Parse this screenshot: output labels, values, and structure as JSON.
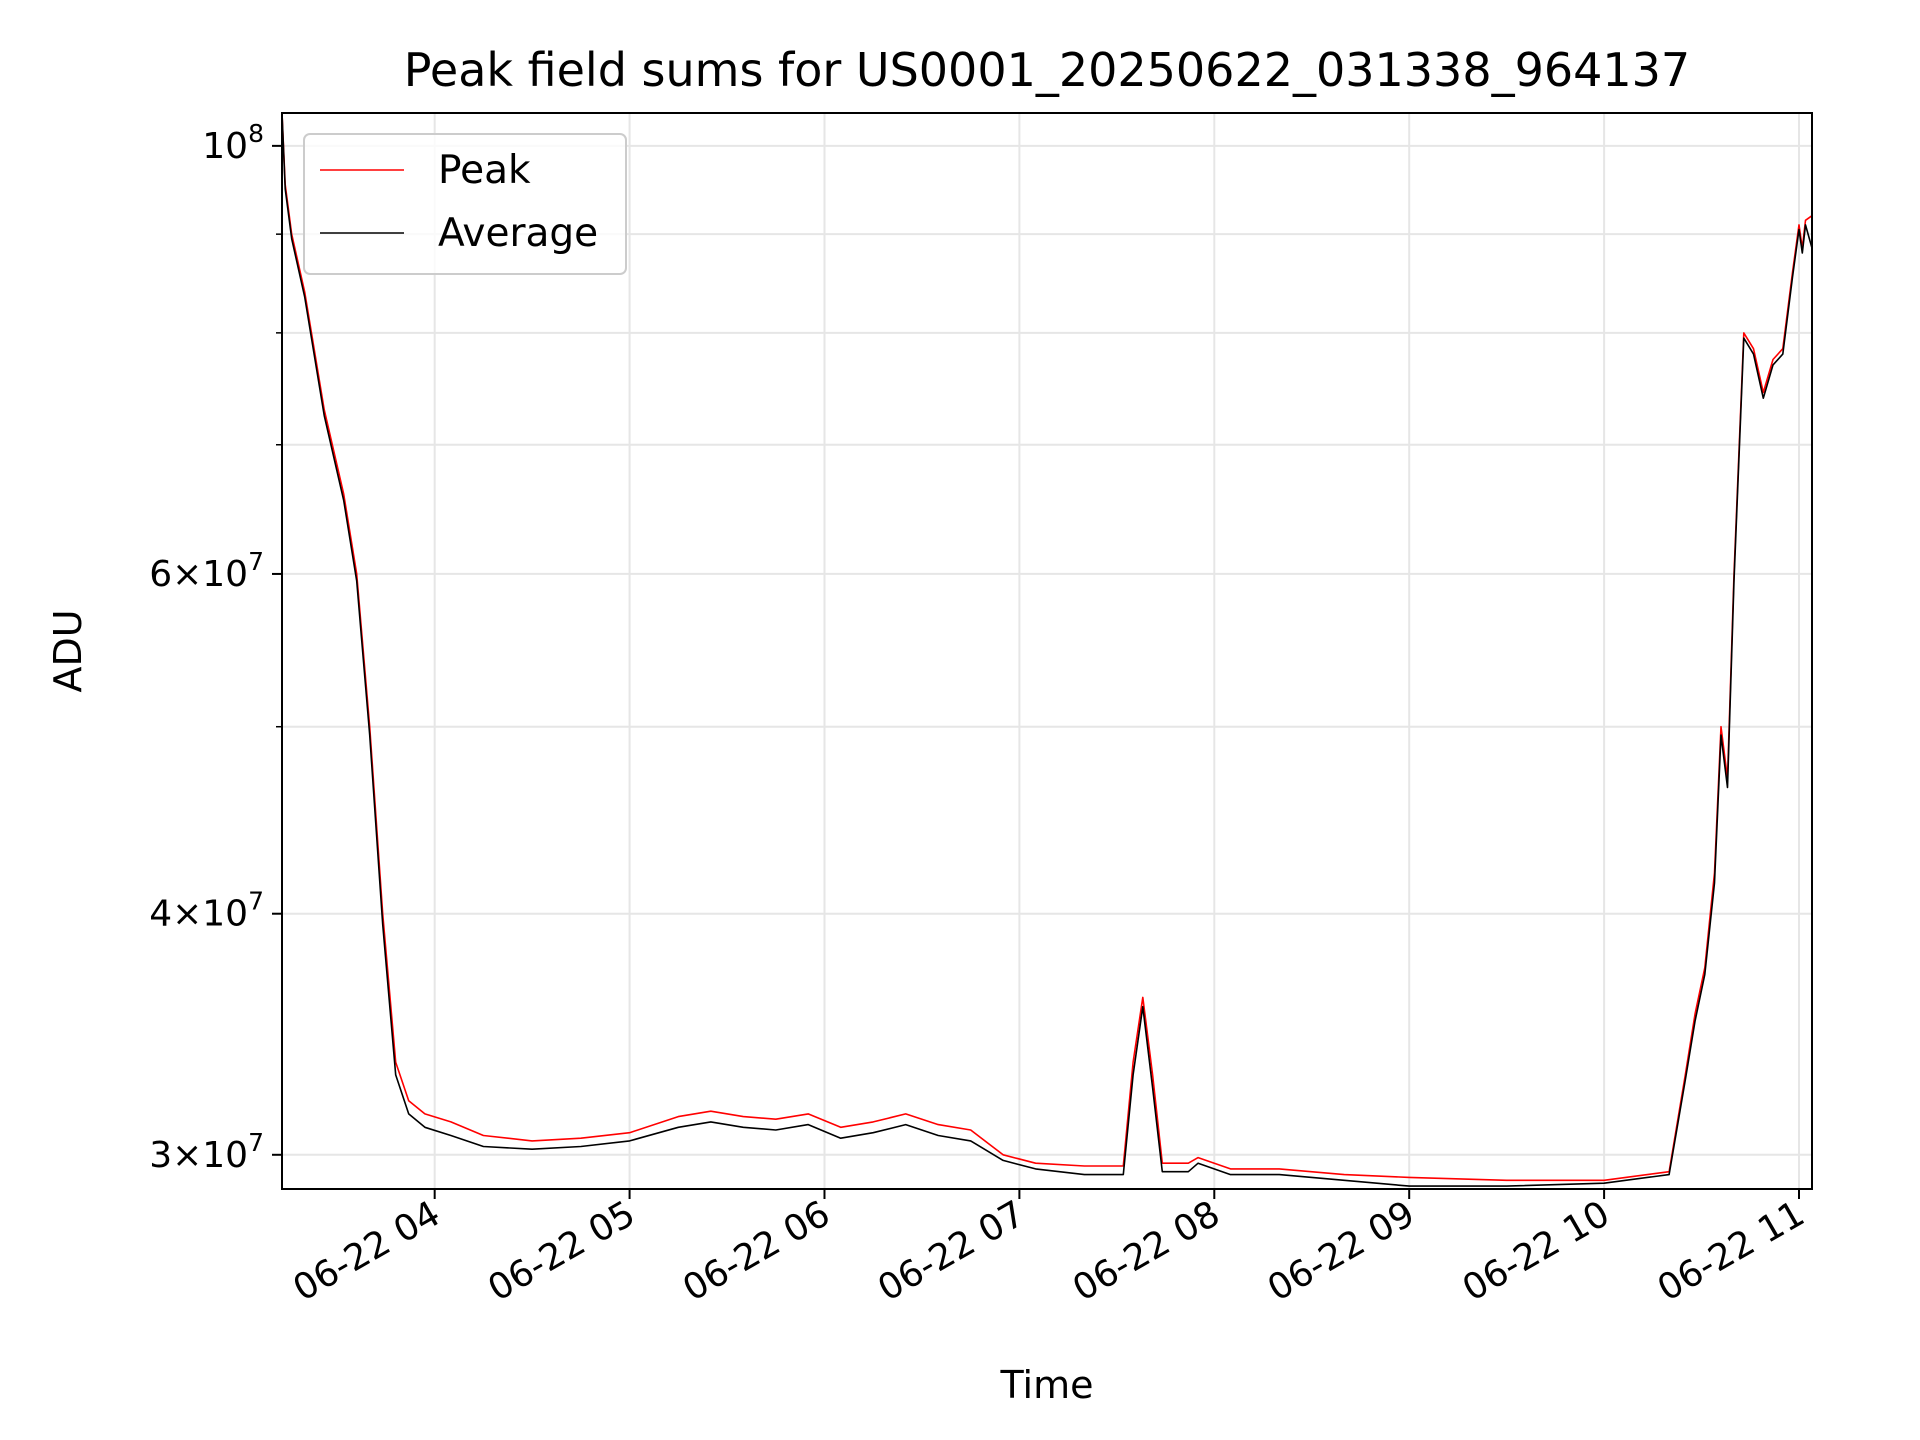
{
  "chart_data": {
    "type": "line",
    "title": "Peak field sums for US0001_20250622_031338_964137",
    "xlabel": "Time",
    "ylabel": "ADU",
    "y_scale": "log",
    "ylim": [
      28800000,
      104000000
    ],
    "xlim": [
      "2025-06-22 03:13",
      "2025-06-22 11:04"
    ],
    "grid": true,
    "legend_position": "top-left",
    "x_ticks": [
      {
        "label": "06-22 04",
        "value": "2025-06-22 04:00"
      },
      {
        "label": "06-22 05",
        "value": "2025-06-22 05:00"
      },
      {
        "label": "06-22 06",
        "value": "2025-06-22 06:00"
      },
      {
        "label": "06-22 07",
        "value": "2025-06-22 07:00"
      },
      {
        "label": "06-22 08",
        "value": "2025-06-22 08:00"
      },
      {
        "label": "06-22 09",
        "value": "2025-06-22 09:00"
      },
      {
        "label": "06-22 10",
        "value": "2025-06-22 10:00"
      },
      {
        "label": "06-22 11",
        "value": "2025-06-22 11:00"
      }
    ],
    "y_ticks_major": [
      {
        "mantissa": "3",
        "exponent": "7",
        "value": 30000000
      },
      {
        "mantissa": "4",
        "exponent": "7",
        "value": 40000000
      },
      {
        "mantissa": "6",
        "exponent": "7",
        "value": 60000000
      },
      {
        "mantissa": "10",
        "exponent": "8",
        "value": 100000000
      }
    ],
    "y_ticks_minor": [
      50000000,
      70000000,
      80000000,
      90000000
    ],
    "series": [
      {
        "name": "Peak",
        "color": "#ff0000",
        "points": [
          [
            "2025-06-22 03:13",
            104000000
          ],
          [
            "2025-06-22 03:14",
            95500000
          ],
          [
            "2025-06-22 03:16",
            90000000
          ],
          [
            "2025-06-22 03:20",
            84000000
          ],
          [
            "2025-06-22 03:26",
            73000000
          ],
          [
            "2025-06-22 03:32",
            66000000
          ],
          [
            "2025-06-22 03:36",
            60000000
          ],
          [
            "2025-06-22 03:40",
            50000000
          ],
          [
            "2025-06-22 03:44",
            40000000
          ],
          [
            "2025-06-22 03:48",
            33500000
          ],
          [
            "2025-06-22 03:52",
            32000000
          ],
          [
            "2025-06-22 03:57",
            31500000
          ],
          [
            "2025-06-22 04:05",
            31200000
          ],
          [
            "2025-06-22 04:15",
            30700000
          ],
          [
            "2025-06-22 04:30",
            30500000
          ],
          [
            "2025-06-22 04:45",
            30600000
          ],
          [
            "2025-06-22 05:00",
            30800000
          ],
          [
            "2025-06-22 05:15",
            31400000
          ],
          [
            "2025-06-22 05:25",
            31600000
          ],
          [
            "2025-06-22 05:35",
            31400000
          ],
          [
            "2025-06-22 05:45",
            31300000
          ],
          [
            "2025-06-22 05:55",
            31500000
          ],
          [
            "2025-06-22 06:05",
            31000000
          ],
          [
            "2025-06-22 06:15",
            31200000
          ],
          [
            "2025-06-22 06:25",
            31500000
          ],
          [
            "2025-06-22 06:35",
            31100000
          ],
          [
            "2025-06-22 06:45",
            30900000
          ],
          [
            "2025-06-22 06:55",
            30000000
          ],
          [
            "2025-06-22 07:05",
            29700000
          ],
          [
            "2025-06-22 07:20",
            29600000
          ],
          [
            "2025-06-22 07:32",
            29600000
          ],
          [
            "2025-06-22 07:35",
            33500000
          ],
          [
            "2025-06-22 07:38",
            36200000
          ],
          [
            "2025-06-22 07:41",
            33000000
          ],
          [
            "2025-06-22 07:44",
            29700000
          ],
          [
            "2025-06-22 07:52",
            29700000
          ],
          [
            "2025-06-22 07:55",
            29900000
          ],
          [
            "2025-06-22 08:05",
            29500000
          ],
          [
            "2025-06-22 08:20",
            29500000
          ],
          [
            "2025-06-22 08:40",
            29300000
          ],
          [
            "2025-06-22 09:00",
            29200000
          ],
          [
            "2025-06-22 09:30",
            29100000
          ],
          [
            "2025-06-22 10:00",
            29100000
          ],
          [
            "2025-06-22 10:20",
            29400000
          ],
          [
            "2025-06-22 10:25",
            33000000
          ],
          [
            "2025-06-22 10:28",
            35500000
          ],
          [
            "2025-06-22 10:31",
            37500000
          ],
          [
            "2025-06-22 10:34",
            42000000
          ],
          [
            "2025-06-22 10:36",
            50000000
          ],
          [
            "2025-06-22 10:38",
            47000000
          ],
          [
            "2025-06-22 10:40",
            60000000
          ],
          [
            "2025-06-22 10:43",
            80000000
          ],
          [
            "2025-06-22 10:46",
            78500000
          ],
          [
            "2025-06-22 10:49",
            74500000
          ],
          [
            "2025-06-22 10:52",
            77500000
          ],
          [
            "2025-06-22 10:55",
            78500000
          ],
          [
            "2025-06-22 10:58",
            86000000
          ],
          [
            "2025-06-22 11:00",
            91000000
          ],
          [
            "2025-06-22 11:01",
            88500000
          ],
          [
            "2025-06-22 11:02",
            91500000
          ],
          [
            "2025-06-22 11:04",
            92000000
          ]
        ]
      },
      {
        "name": "Average",
        "color": "#000000",
        "points": [
          [
            "2025-06-22 03:13",
            104000000
          ],
          [
            "2025-06-22 03:14",
            95000000
          ],
          [
            "2025-06-22 03:16",
            89500000
          ],
          [
            "2025-06-22 03:20",
            83500000
          ],
          [
            "2025-06-22 03:26",
            72500000
          ],
          [
            "2025-06-22 03:32",
            65500000
          ],
          [
            "2025-06-22 03:36",
            59500000
          ],
          [
            "2025-06-22 03:40",
            49500000
          ],
          [
            "2025-06-22 03:44",
            39500000
          ],
          [
            "2025-06-22 03:48",
            33000000
          ],
          [
            "2025-06-22 03:52",
            31500000
          ],
          [
            "2025-06-22 03:57",
            31000000
          ],
          [
            "2025-06-22 04:05",
            30700000
          ],
          [
            "2025-06-22 04:15",
            30300000
          ],
          [
            "2025-06-22 04:30",
            30200000
          ],
          [
            "2025-06-22 04:45",
            30300000
          ],
          [
            "2025-06-22 05:00",
            30500000
          ],
          [
            "2025-06-22 05:15",
            31000000
          ],
          [
            "2025-06-22 05:25",
            31200000
          ],
          [
            "2025-06-22 05:35",
            31000000
          ],
          [
            "2025-06-22 05:45",
            30900000
          ],
          [
            "2025-06-22 05:55",
            31100000
          ],
          [
            "2025-06-22 06:05",
            30600000
          ],
          [
            "2025-06-22 06:15",
            30800000
          ],
          [
            "2025-06-22 06:25",
            31100000
          ],
          [
            "2025-06-22 06:35",
            30700000
          ],
          [
            "2025-06-22 06:45",
            30500000
          ],
          [
            "2025-06-22 06:55",
            29800000
          ],
          [
            "2025-06-22 07:05",
            29500000
          ],
          [
            "2025-06-22 07:20",
            29300000
          ],
          [
            "2025-06-22 07:32",
            29300000
          ],
          [
            "2025-06-22 07:35",
            33000000
          ],
          [
            "2025-06-22 07:38",
            35800000
          ],
          [
            "2025-06-22 07:41",
            32500000
          ],
          [
            "2025-06-22 07:44",
            29400000
          ],
          [
            "2025-06-22 07:52",
            29400000
          ],
          [
            "2025-06-22 07:55",
            29700000
          ],
          [
            "2025-06-22 08:05",
            29300000
          ],
          [
            "2025-06-22 08:20",
            29300000
          ],
          [
            "2025-06-22 08:40",
            29100000
          ],
          [
            "2025-06-22 09:00",
            28900000
          ],
          [
            "2025-06-22 09:30",
            28900000
          ],
          [
            "2025-06-22 10:00",
            29000000
          ],
          [
            "2025-06-22 10:20",
            29300000
          ],
          [
            "2025-06-22 10:25",
            32800000
          ],
          [
            "2025-06-22 10:28",
            35200000
          ],
          [
            "2025-06-22 10:31",
            37200000
          ],
          [
            "2025-06-22 10:34",
            41500000
          ],
          [
            "2025-06-22 10:36",
            49500000
          ],
          [
            "2025-06-22 10:38",
            46500000
          ],
          [
            "2025-06-22 10:40",
            59500000
          ],
          [
            "2025-06-22 10:43",
            79500000
          ],
          [
            "2025-06-22 10:46",
            78000000
          ],
          [
            "2025-06-22 10:49",
            74000000
          ],
          [
            "2025-06-22 10:52",
            77000000
          ],
          [
            "2025-06-22 10:55",
            78000000
          ],
          [
            "2025-06-22 10:58",
            85500000
          ],
          [
            "2025-06-22 11:00",
            90500000
          ],
          [
            "2025-06-22 11:01",
            88000000
          ],
          [
            "2025-06-22 11:02",
            91000000
          ],
          [
            "2025-06-22 11:04",
            88500000
          ]
        ]
      }
    ]
  }
}
